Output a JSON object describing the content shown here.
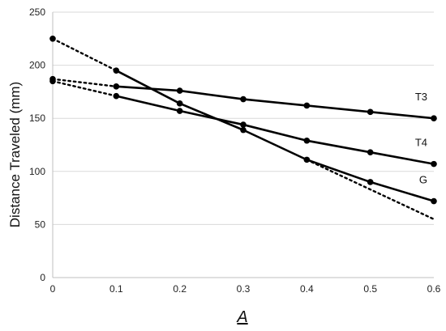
{
  "chart_data": {
    "type": "line",
    "xlabel": "A",
    "ylabel": "Distance Traveled (mm)",
    "xlim": [
      0,
      0.6
    ],
    "ylim": [
      0,
      250
    ],
    "xticks": [
      0,
      0.1,
      0.2,
      0.3,
      0.4,
      0.5,
      0.6
    ],
    "xtick_labels": [
      "0",
      "0.1",
      "0.2",
      "0.3",
      "0.4",
      "0.5",
      "0.6"
    ],
    "yticks": [
      0,
      50,
      100,
      150,
      200,
      250
    ],
    "ytick_labels": [
      "0",
      "50",
      "100",
      "150",
      "200",
      "250"
    ],
    "grid": "horizontal",
    "series": [
      {
        "name": "T3",
        "x": [
          0.1,
          0.2,
          0.3,
          0.4,
          0.5,
          0.6
        ],
        "values": [
          180,
          176,
          168,
          162,
          156,
          150
        ],
        "style": "solid",
        "markers": true
      },
      {
        "name": "T4",
        "x": [
          0.1,
          0.2,
          0.3,
          0.4,
          0.5,
          0.6
        ],
        "values": [
          171,
          157,
          144,
          129,
          118,
          107
        ],
        "style": "solid",
        "markers": true
      },
      {
        "name": "G",
        "x": [
          0.1,
          0.2,
          0.3,
          0.4,
          0.5,
          0.6
        ],
        "values": [
          195,
          164,
          139,
          111,
          90,
          72
        ],
        "style": "solid",
        "markers": true
      }
    ],
    "trend_lines": [
      {
        "x": [
          0,
          0.1
        ],
        "values": [
          187,
          180
        ],
        "style": "dotted",
        "markers_at_start": true
      },
      {
        "x": [
          0,
          0.1
        ],
        "values": [
          185,
          171
        ],
        "style": "dotted",
        "markers_at_start": true
      },
      {
        "x": [
          0,
          0.1
        ],
        "values": [
          225,
          195
        ],
        "style": "dotted",
        "markers_at_start": true
      },
      {
        "x": [
          0.4,
          0.6
        ],
        "values": [
          111,
          55
        ],
        "style": "dotted",
        "markers_at_start": false
      }
    ],
    "colors": {
      "line": "#000000",
      "grid": "#d9d9d9",
      "axis": "#bfbfbf"
    }
  }
}
